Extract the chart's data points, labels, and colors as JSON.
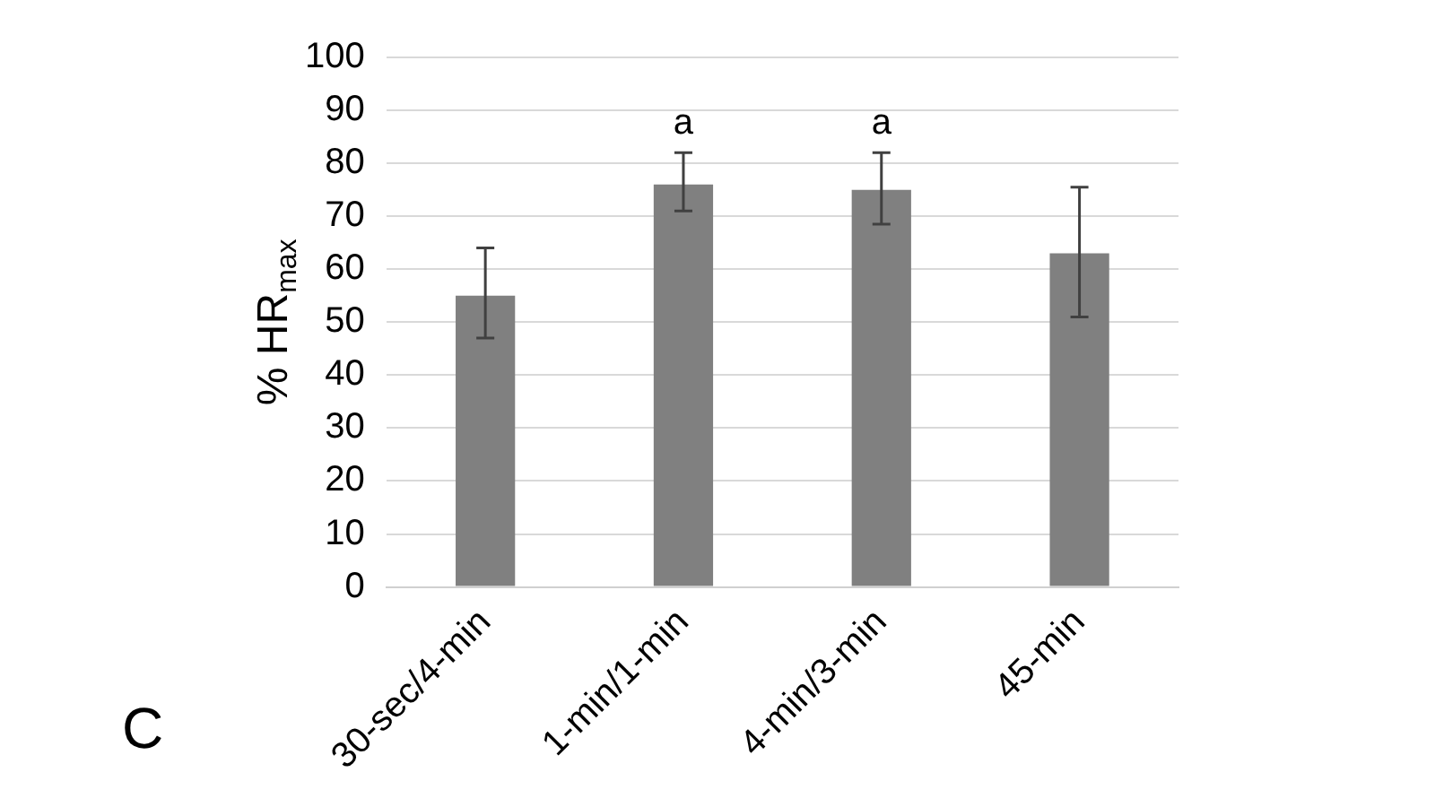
{
  "chart_data": {
    "type": "bar",
    "ylabel": "% HR$_{max}$",
    "categories": [
      "30-sec/4-min",
      "1-min/1-min",
      "4-min/3-min",
      "45-min"
    ],
    "values": [
      55,
      76,
      75,
      63
    ],
    "errors": [
      [
        47,
        64
      ],
      [
        71,
        82
      ],
      [
        68.5,
        82
      ],
      [
        51,
        75.5
      ]
    ],
    "color": "#808080",
    "ylim": [
      0,
      100
    ],
    "yticks": [
      0,
      10,
      20,
      30,
      40,
      50,
      60,
      70,
      80,
      90,
      100
    ],
    "grid": "y",
    "legend": false,
    "annotations": [
      {
        "text": "a",
        "x": "1-min/1-min",
        "y": 82
      },
      {
        "text": "a",
        "x": "4-min/3-min",
        "y": 82
      },
      "C"
    ]
  }
}
